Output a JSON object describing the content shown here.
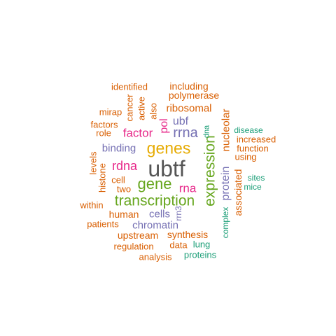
{
  "wordcloud": {
    "palette": {
      "orange": "#D95F02",
      "teal": "#1B9E77",
      "purple": "#7570B3",
      "magenta": "#E7298A",
      "green": "#66A61E",
      "gold": "#E6AB02",
      "gray": "#555555"
    },
    "words": [
      "ubtf",
      "transcription",
      "genes",
      "gene",
      "expression",
      "rrna",
      "rdna",
      "factor",
      "rna",
      "protein",
      "binding",
      "pol",
      "ubf",
      "ribosomal",
      "nucleolar",
      "chromatin",
      "cells",
      "associated",
      "identified",
      "including",
      "polymerase",
      "cancer",
      "active",
      "also",
      "mirap",
      "factors",
      "role",
      "levels",
      "histone",
      "cell",
      "two",
      "within",
      "human",
      "patients",
      "upstream",
      "synthesis",
      "regulation",
      "data",
      "analysis",
      "lung",
      "proteins",
      "complex",
      "rrn3",
      "dna",
      "disease",
      "increased",
      "function",
      "using",
      "sites",
      "mice"
    ]
  }
}
